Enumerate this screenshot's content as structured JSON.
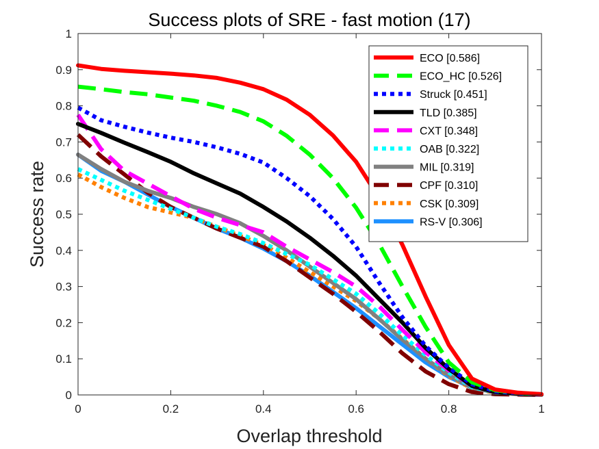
{
  "chart_data": {
    "type": "line",
    "title": "Success plots of SRE - fast motion (17)",
    "xlabel": "Overlap threshold",
    "ylabel": "Success rate",
    "xlim": [
      0,
      1
    ],
    "ylim": [
      0,
      1
    ],
    "x_tick_labels": [
      "0",
      "0.2",
      "0.4",
      "0.6",
      "0.8",
      "1"
    ],
    "y_tick_labels": [
      "0",
      "0.1",
      "0.2",
      "0.3",
      "0.4",
      "0.5",
      "0.6",
      "0.7",
      "0.8",
      "0.9",
      "1"
    ],
    "legend_position": "top-right",
    "x": [
      0,
      0.05,
      0.1,
      0.15,
      0.2,
      0.25,
      0.3,
      0.35,
      0.4,
      0.45,
      0.5,
      0.55,
      0.6,
      0.65,
      0.7,
      0.75,
      0.8,
      0.85,
      0.9,
      0.95,
      1.0
    ],
    "series": [
      {
        "name": "ECO [0.586]",
        "color": "#ff0000",
        "dash": "solid",
        "values": [
          0.912,
          0.902,
          0.897,
          0.893,
          0.889,
          0.884,
          0.877,
          0.864,
          0.846,
          0.817,
          0.775,
          0.718,
          0.645,
          0.545,
          0.415,
          0.272,
          0.138,
          0.045,
          0.015,
          0.006,
          0.002
        ]
      },
      {
        "name": "ECO_HC [0.526]",
        "color": "#00ff00",
        "dash": "dash",
        "values": [
          0.853,
          0.846,
          0.838,
          0.832,
          0.823,
          0.814,
          0.8,
          0.783,
          0.757,
          0.717,
          0.665,
          0.6,
          0.518,
          0.417,
          0.3,
          0.188,
          0.09,
          0.035,
          0.013,
          0.005,
          0.002
        ]
      },
      {
        "name": "Struck [0.451]",
        "color": "#0000ff",
        "dash": "dot",
        "values": [
          0.795,
          0.76,
          0.742,
          0.726,
          0.712,
          0.7,
          0.685,
          0.667,
          0.643,
          0.6,
          0.55,
          0.487,
          0.41,
          0.31,
          0.215,
          0.135,
          0.075,
          0.03,
          0.01,
          0.004,
          0.002
        ]
      },
      {
        "name": "TLD [0.385]",
        "color": "#000000",
        "dash": "solid",
        "values": [
          0.75,
          0.725,
          0.698,
          0.672,
          0.645,
          0.613,
          0.585,
          0.557,
          0.52,
          0.48,
          0.435,
          0.385,
          0.33,
          0.265,
          0.2,
          0.13,
          0.072,
          0.025,
          0.008,
          0.003,
          0.001
        ]
      },
      {
        "name": "CXT [0.348]",
        "color": "#ff00ff",
        "dash": "dash",
        "values": [
          0.775,
          0.68,
          0.62,
          0.585,
          0.55,
          0.515,
          0.49,
          0.47,
          0.45,
          0.41,
          0.375,
          0.34,
          0.3,
          0.245,
          0.18,
          0.118,
          0.068,
          0.025,
          0.008,
          0.003,
          0.001
        ]
      },
      {
        "name": "OAB [0.322]",
        "color": "#00ffff",
        "dash": "dot",
        "values": [
          0.625,
          0.595,
          0.565,
          0.54,
          0.515,
          0.49,
          0.465,
          0.445,
          0.42,
          0.39,
          0.36,
          0.32,
          0.28,
          0.225,
          0.165,
          0.11,
          0.062,
          0.022,
          0.008,
          0.003,
          0.001
        ]
      },
      {
        "name": "MIL [0.319]",
        "color": "#808080",
        "dash": "solid",
        "values": [
          0.665,
          0.625,
          0.59,
          0.565,
          0.545,
          0.52,
          0.5,
          0.475,
          0.44,
          0.4,
          0.355,
          0.31,
          0.265,
          0.21,
          0.153,
          0.1,
          0.055,
          0.02,
          0.007,
          0.002,
          0.001
        ]
      },
      {
        "name": "CPF [0.310]",
        "color": "#800000",
        "dash": "dash",
        "values": [
          0.72,
          0.66,
          0.61,
          0.56,
          0.52,
          0.49,
          0.46,
          0.435,
          0.41,
          0.37,
          0.325,
          0.28,
          0.23,
          0.175,
          0.115,
          0.065,
          0.03,
          0.008,
          0.002,
          0.001,
          0.0
        ]
      },
      {
        "name": "CSK [0.309]",
        "color": "#ff8000",
        "dash": "dot",
        "values": [
          0.61,
          0.575,
          0.545,
          0.52,
          0.505,
          0.49,
          0.465,
          0.44,
          0.415,
          0.38,
          0.34,
          0.3,
          0.26,
          0.21,
          0.155,
          0.1,
          0.052,
          0.018,
          0.006,
          0.002,
          0.001
        ]
      },
      {
        "name": "RS-V [0.306]",
        "color": "#1e90ff",
        "dash": "solid",
        "values": [
          0.665,
          0.62,
          0.59,
          0.555,
          0.52,
          0.49,
          0.46,
          0.435,
          0.405,
          0.37,
          0.33,
          0.285,
          0.24,
          0.19,
          0.14,
          0.09,
          0.05,
          0.02,
          0.008,
          0.003,
          0.001
        ]
      }
    ]
  }
}
